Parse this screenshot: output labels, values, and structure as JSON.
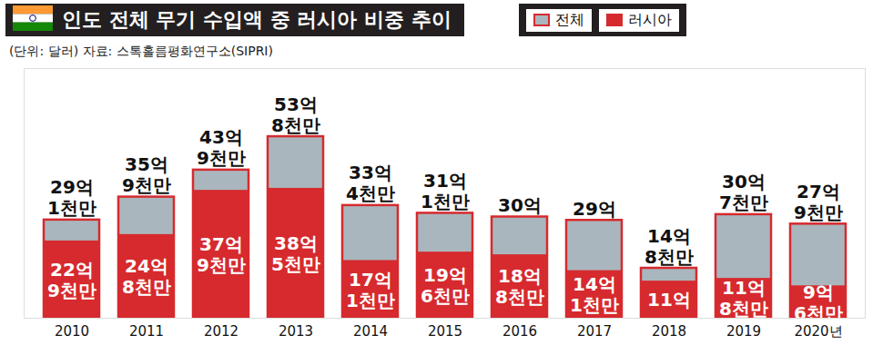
{
  "chart_data": {
    "type": "bar",
    "title": "인도 전체 무기 수입액 중 러시아 비중 추이",
    "subtitle": "(단위: 달러) 자료: 스톡홀름평화연구소(SIPRI)",
    "categories": [
      "2010",
      "2011",
      "2012",
      "2013",
      "2014",
      "2015",
      "2016",
      "2017",
      "2018",
      "2019",
      "2020년"
    ],
    "series": [
      {
        "name": "전체",
        "color": "#aab6bd",
        "values": [
          2910000000,
          3590000000,
          4390000000,
          5380000000,
          3340000000,
          3110000000,
          3000000000,
          2900000000,
          1480000000,
          3070000000,
          2790000000
        ],
        "value_labels": [
          "29억 1천만",
          "35억 9천만",
          "43억 9천만",
          "53억 8천만",
          "33억 4천만",
          "31억 1천만",
          "30억",
          "29억",
          "14억 8천만",
          "30억 7천만",
          "27억 9천만"
        ]
      },
      {
        "name": "러시아",
        "color": "#d62a2e",
        "values": [
          2290000000,
          2480000000,
          3790000000,
          3850000000,
          1710000000,
          1960000000,
          1880000000,
          1410000000,
          1100000000,
          1180000000,
          960000000
        ],
        "value_labels": [
          "22억 9천만",
          "24억 8천만",
          "37억 9천만",
          "38억 5천만",
          "17억 1천만",
          "19억 6천만",
          "18억 8천만",
          "14억 1천만",
          "11억",
          "11억 8천만",
          "9억 6천만"
        ]
      }
    ],
    "ylim": [
      0,
      7400000000
    ],
    "yticks": [],
    "stacked": false,
    "data_labels": true,
    "tick_labels": "x",
    "legend": "top-right"
  }
}
